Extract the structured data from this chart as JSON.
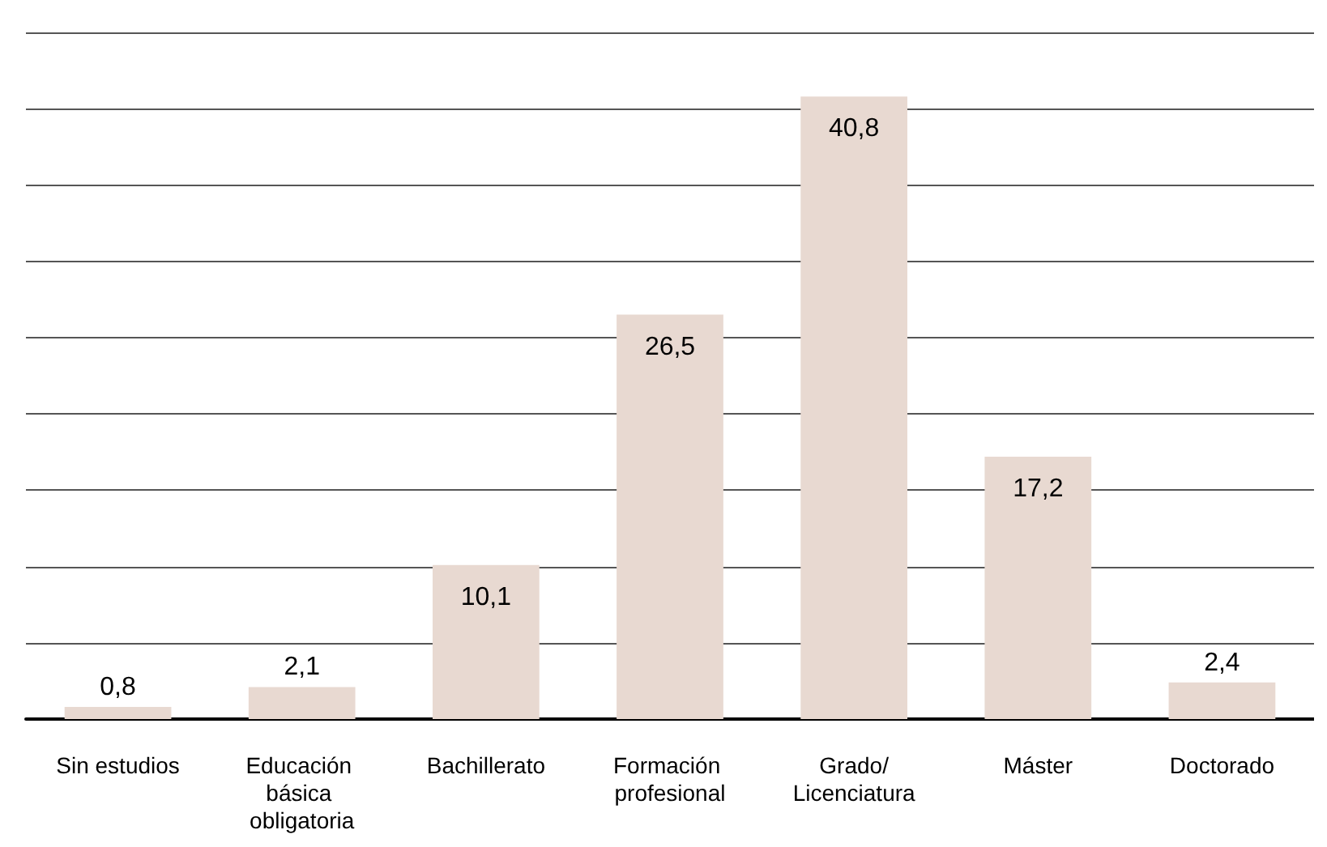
{
  "chart_data": {
    "type": "bar",
    "categories": [
      "Sin estudios",
      "Educación básica obligatoria",
      "Bachillerato",
      "Formación profesional",
      "Grado/Licenciatura",
      "Máster",
      "Doctorado"
    ],
    "values": [
      0.8,
      2.1,
      10.1,
      26.5,
      40.8,
      17.2,
      2.4
    ],
    "value_labels": [
      "0,8",
      "2,1",
      "10,1",
      "26,5",
      "40,8",
      "17,2",
      "2,4"
    ],
    "color": "#e8d9d1",
    "ylim": [
      0,
      45
    ],
    "yticks": [
      {
        "value": 0,
        "label": null
      },
      {
        "value": 5,
        "label": null
      },
      {
        "value": 10,
        "label": null
      },
      {
        "value": 15,
        "label": null
      },
      {
        "value": 20,
        "label": null
      },
      {
        "value": 25,
        "label": null
      },
      {
        "value": 30,
        "label": null
      },
      {
        "value": 35,
        "label": null
      },
      {
        "value": 40,
        "label": null
      },
      {
        "value": 45,
        "label": null
      }
    ],
    "grid": "y",
    "tick_labels": "x"
  }
}
